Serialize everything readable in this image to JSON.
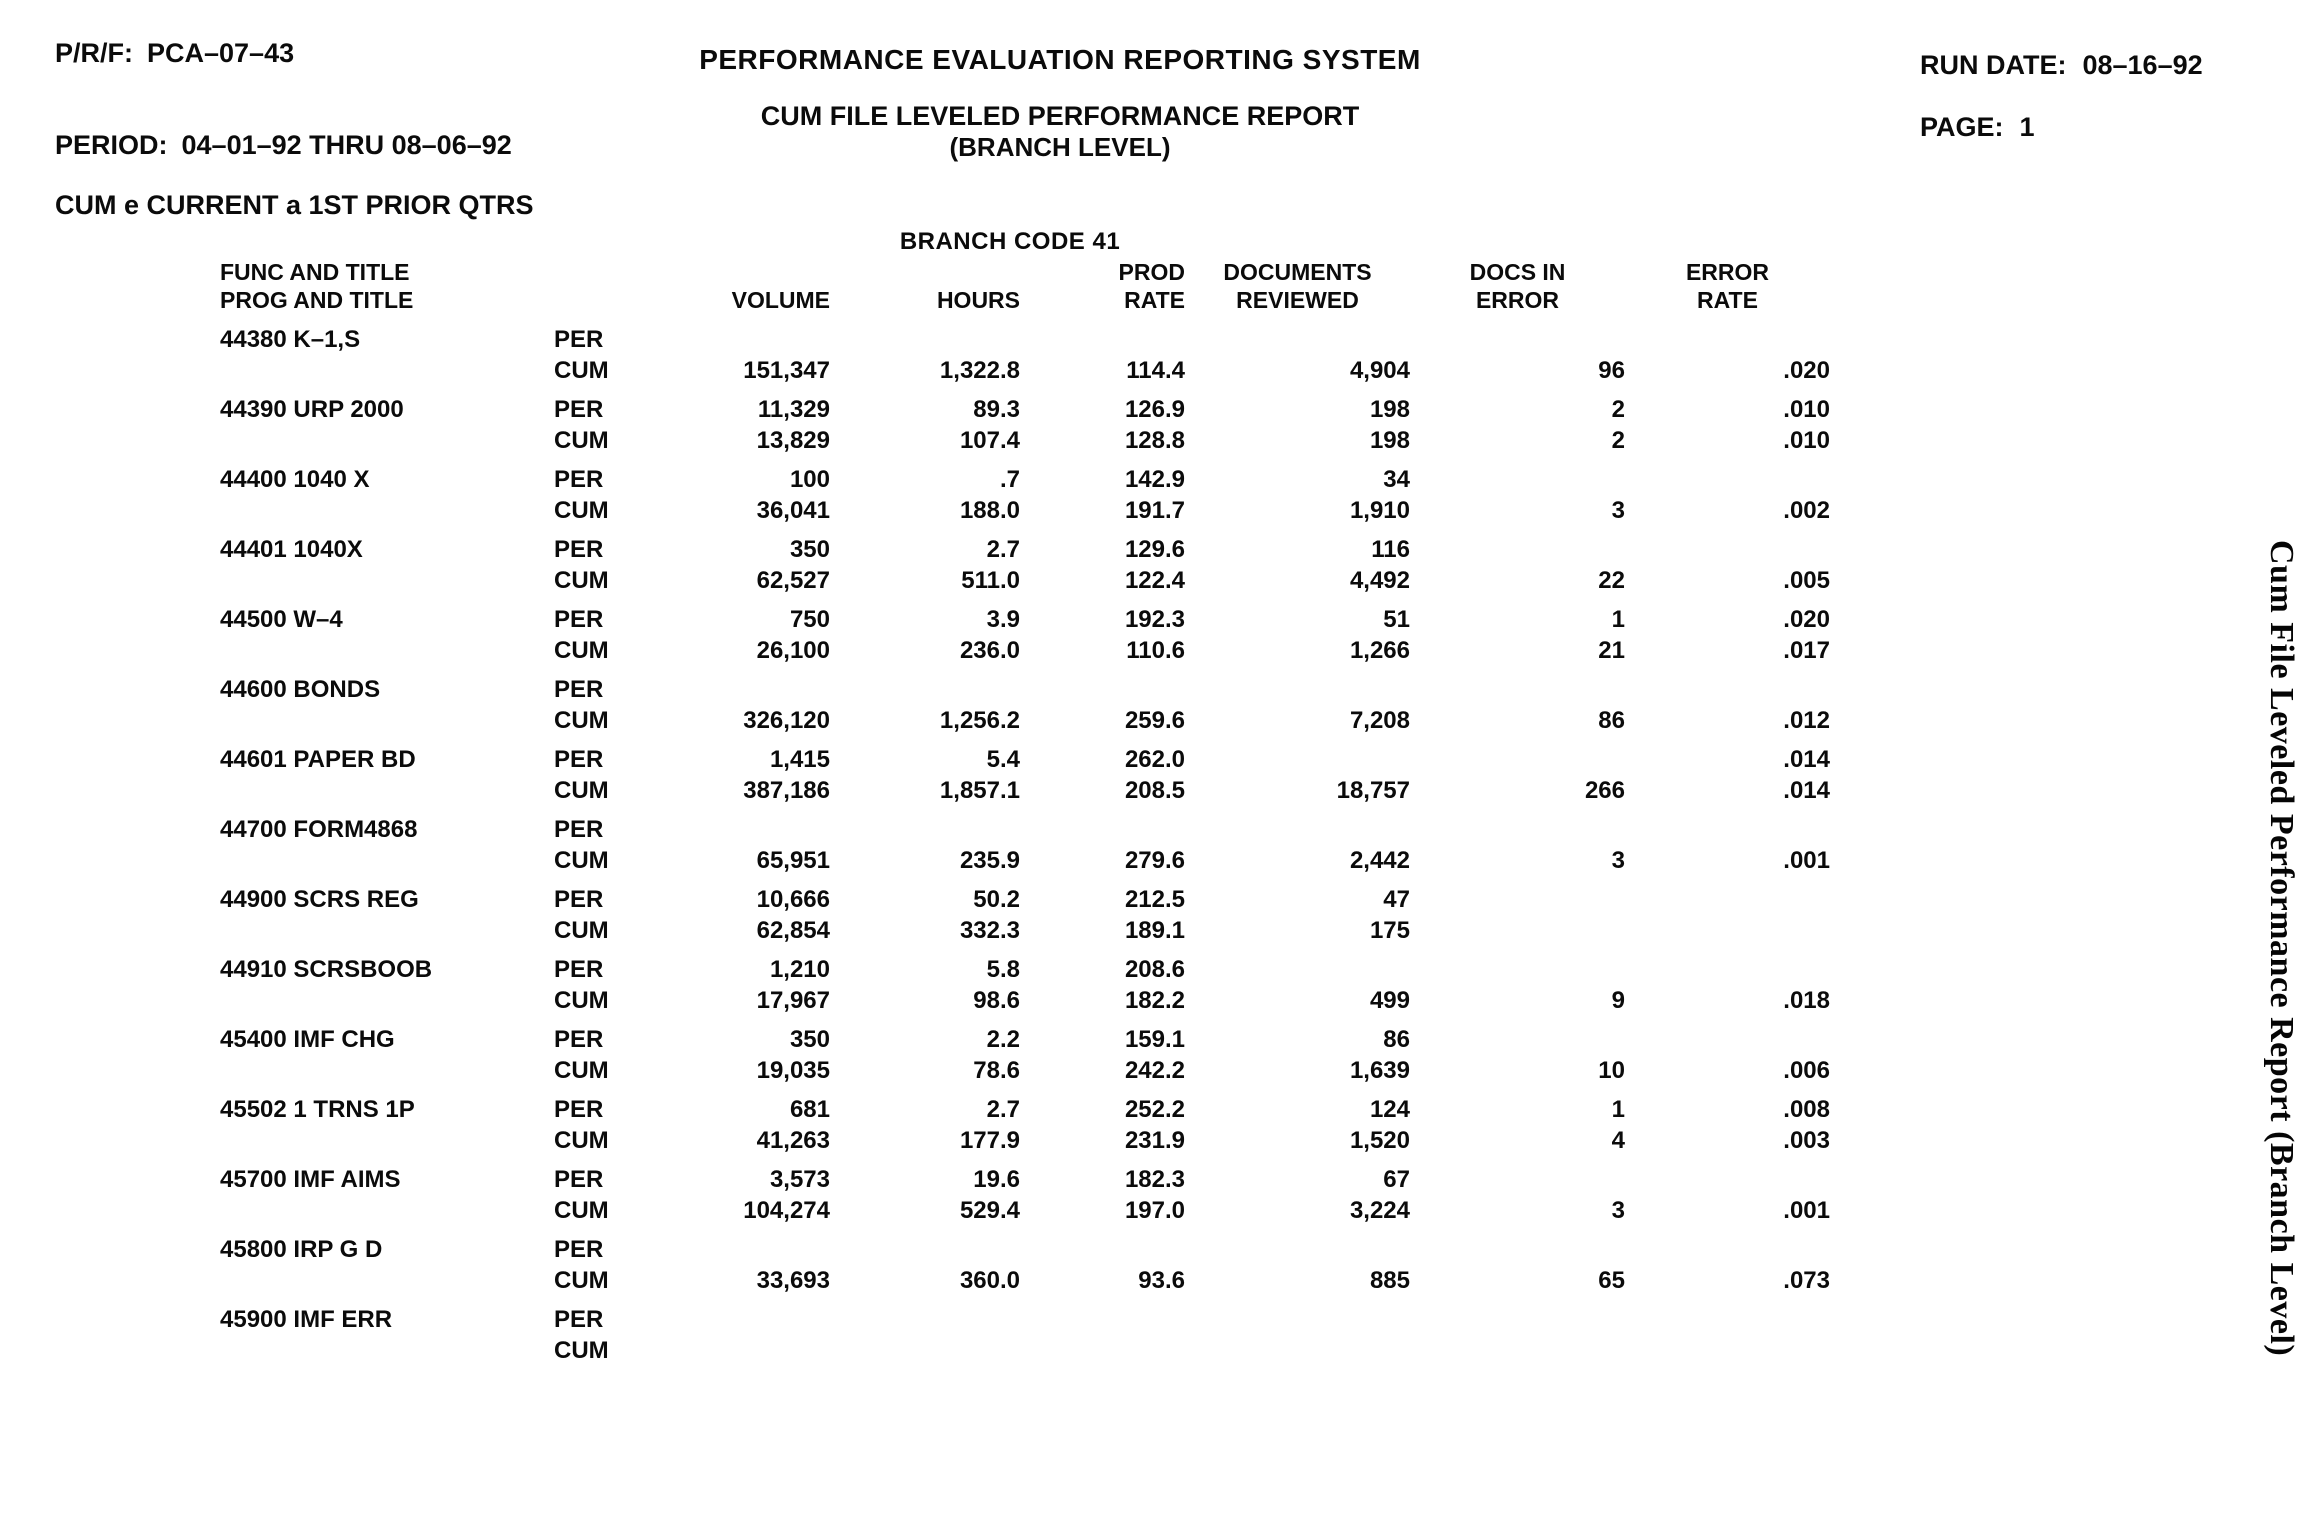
{
  "header": {
    "left": {
      "prf_label": "P/R/F:",
      "prf_value": "PCA–07–43",
      "period_label": "PERIOD:",
      "period_value": "04–01–92 THRU 08–06–92",
      "cum_note": "CUM e CURRENT a 1ST PRIOR QTRS"
    },
    "center": {
      "system_title": "PERFORMANCE EVALUATION REPORTING SYSTEM",
      "report_title": "CUM FILE LEVELED PERFORMANCE REPORT",
      "report_subtitle": "(BRANCH LEVEL)"
    },
    "right": {
      "run_date_label": "RUN DATE:",
      "run_date_value": "08–16–92",
      "page_label": "PAGE:",
      "page_value": "1"
    }
  },
  "table": {
    "branch_code_title": "BRANCH CODE 41",
    "columns": {
      "func_line1": "FUNC AND TITLE",
      "func_line2": "PROG AND TITLE",
      "volume": "VOLUME",
      "hours": "HOURS",
      "prod_line1": "PROD",
      "prod_line2": "RATE",
      "docs_line1": "DOCUMENTS",
      "docs_line2": "REVIEWED",
      "err_line1": "DOCS IN",
      "err_line2": "ERROR",
      "rate_line1": "ERROR",
      "rate_line2": "RATE"
    },
    "period_labels": [
      "PER",
      "CUM"
    ],
    "rows": [
      {
        "program": "44380 K–1,S",
        "per": [
          "",
          "",
          "",
          "",
          "",
          ""
        ],
        "cum": [
          "151,347",
          "1,322.8",
          "114.4",
          "4,904",
          "96",
          ".020"
        ]
      },
      {
        "program": "44390 URP 2000",
        "per": [
          "11,329",
          "89.3",
          "126.9",
          "198",
          "2",
          ".010"
        ],
        "cum": [
          "13,829",
          "107.4",
          "128.8",
          "198",
          "2",
          ".010"
        ]
      },
      {
        "program": "44400 1040 X",
        "per": [
          "100",
          ".7",
          "142.9",
          "34",
          "",
          ""
        ],
        "cum": [
          "36,041",
          "188.0",
          "191.7",
          "1,910",
          "3",
          ".002"
        ]
      },
      {
        "program": "44401 1040X",
        "per": [
          "350",
          "2.7",
          "129.6",
          "116",
          "",
          ""
        ],
        "cum": [
          "62,527",
          "511.0",
          "122.4",
          "4,492",
          "22",
          ".005"
        ]
      },
      {
        "program": "44500 W–4",
        "per": [
          "750",
          "3.9",
          "192.3",
          "51",
          "1",
          ".020"
        ],
        "cum": [
          "26,100",
          "236.0",
          "110.6",
          "1,266",
          "21",
          ".017"
        ]
      },
      {
        "program": "44600 BONDS",
        "per": [
          "",
          "",
          "",
          "",
          "",
          ""
        ],
        "cum": [
          "326,120",
          "1,256.2",
          "259.6",
          "7,208",
          "86",
          ".012"
        ]
      },
      {
        "program": "44601 PAPER BD",
        "per": [
          "1,415",
          "5.4",
          "262.0",
          "",
          "",
          ".014"
        ],
        "cum": [
          "387,186",
          "1,857.1",
          "208.5",
          "18,757",
          "266",
          ".014"
        ]
      },
      {
        "program": "44700 FORM4868",
        "per": [
          "",
          "",
          "",
          "",
          "",
          ""
        ],
        "cum": [
          "65,951",
          "235.9",
          "279.6",
          "2,442",
          "3",
          ".001"
        ]
      },
      {
        "program": "44900 SCRS REG",
        "per": [
          "10,666",
          "50.2",
          "212.5",
          "47",
          "",
          ""
        ],
        "cum": [
          "62,854",
          "332.3",
          "189.1",
          "175",
          "",
          ""
        ]
      },
      {
        "program": "44910 SCRSBOOB",
        "per": [
          "1,210",
          "5.8",
          "208.6",
          "",
          "",
          ""
        ],
        "cum": [
          "17,967",
          "98.6",
          "182.2",
          "499",
          "9",
          ".018"
        ]
      },
      {
        "program": "45400 IMF CHG",
        "per": [
          "350",
          "2.2",
          "159.1",
          "86",
          "",
          ""
        ],
        "cum": [
          "19,035",
          "78.6",
          "242.2",
          "1,639",
          "10",
          ".006"
        ]
      },
      {
        "program": "45502 1 TRNS 1P",
        "per": [
          "681",
          "2.7",
          "252.2",
          "124",
          "1",
          ".008"
        ],
        "cum": [
          "41,263",
          "177.9",
          "231.9",
          "1,520",
          "4",
          ".003"
        ]
      },
      {
        "program": "45700 IMF AIMS",
        "per": [
          "3,573",
          "19.6",
          "182.3",
          "67",
          "",
          ""
        ],
        "cum": [
          "104,274",
          "529.4",
          "197.0",
          "3,224",
          "3",
          ".001"
        ]
      },
      {
        "program": "45800 IRP G D",
        "per": [
          "",
          "",
          "",
          "",
          "",
          ""
        ],
        "cum": [
          "33,693",
          "360.0",
          "93.6",
          "885",
          "65",
          ".073"
        ]
      },
      {
        "program": "45900 IMF ERR",
        "per": [
          "",
          "",
          "",
          "",
          "",
          ""
        ],
        "cum": [
          "",
          "",
          "",
          "",
          "",
          ""
        ]
      }
    ]
  },
  "sidebar": {
    "vertical_label": "Cum File Leveled Performance Report (Branch Level)"
  }
}
